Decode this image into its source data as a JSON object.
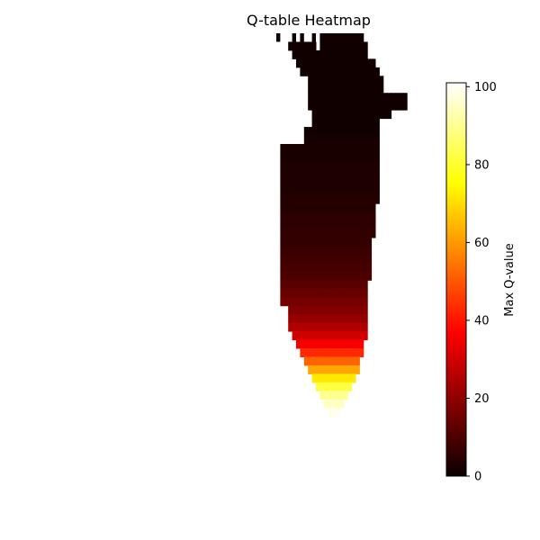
{
  "chart_data": {
    "type": "heatmap",
    "title": "Q-table Heatmap",
    "xlabel": "",
    "ylabel": "",
    "axes_visible": false,
    "grid": false,
    "empty_cell_color": "#ffffff",
    "colormap": "hot",
    "colorbar": {
      "label": "Max Q-value",
      "range": [
        0,
        101
      ],
      "ticks": [
        0,
        20,
        40,
        60,
        80,
        100
      ],
      "placement": "right"
    },
    "grid_size": {
      "rows": 46,
      "cols": 46
    },
    "description_rows": [
      {
        "y": 0,
        "segments": [
          [
            31,
            41,
            1
          ]
        ],
        "sparse": [
          [
            20,
            1
          ],
          [
            24,
            1
          ],
          [
            26,
            1
          ],
          [
            29,
            1
          ]
        ]
      },
      {
        "y": 1,
        "segments": [
          [
            23,
            29,
            1
          ],
          [
            31,
            42,
            1
          ]
        ]
      },
      {
        "y": 2,
        "segments": [
          [
            24,
            42,
            1
          ]
        ]
      },
      {
        "y": 3,
        "segments": [
          [
            25,
            44,
            1
          ]
        ]
      },
      {
        "y": 4,
        "segments": [
          [
            26,
            45,
            1
          ]
        ]
      },
      {
        "y": 5,
        "segments": [
          [
            28,
            46,
            1
          ]
        ]
      },
      {
        "y": 6,
        "segments": [
          [
            28,
            46,
            1
          ]
        ]
      },
      {
        "y": 7,
        "segments": [
          [
            28,
            52,
            1
          ]
        ]
      },
      {
        "y": 8,
        "segments": [
          [
            28,
            52,
            1
          ]
        ]
      },
      {
        "y": 9,
        "segments": [
          [
            29,
            48,
            1
          ]
        ]
      },
      {
        "y": 10,
        "segments": [
          [
            29,
            45,
            1
          ]
        ]
      },
      {
        "y": 11,
        "segments": [
          [
            27,
            45,
            1
          ]
        ]
      },
      {
        "y": 12,
        "segments": [
          [
            27,
            45,
            2
          ]
        ]
      },
      {
        "y": 13,
        "segments": [
          [
            21,
            45,
            2
          ]
        ]
      },
      {
        "y": 14,
        "segments": [
          [
            21,
            45,
            2
          ]
        ]
      },
      {
        "y": 15,
        "segments": [
          [
            21,
            45,
            3
          ]
        ]
      },
      {
        "y": 16,
        "segments": [
          [
            21,
            45,
            3
          ]
        ]
      },
      {
        "y": 17,
        "segments": [
          [
            21,
            45,
            3
          ]
        ]
      },
      {
        "y": 18,
        "segments": [
          [
            21,
            45,
            3
          ]
        ]
      },
      {
        "y": 19,
        "segments": [
          [
            21,
            45,
            4
          ]
        ]
      },
      {
        "y": 20,
        "segments": [
          [
            21,
            44,
            4
          ]
        ]
      },
      {
        "y": 21,
        "segments": [
          [
            21,
            44,
            5
          ]
        ]
      },
      {
        "y": 22,
        "segments": [
          [
            21,
            44,
            5
          ]
        ]
      },
      {
        "y": 23,
        "segments": [
          [
            21,
            44,
            6
          ]
        ]
      },
      {
        "y": 24,
        "segments": [
          [
            21,
            43,
            6
          ]
        ]
      },
      {
        "y": 25,
        "segments": [
          [
            21,
            43,
            7
          ]
        ]
      },
      {
        "y": 26,
        "segments": [
          [
            21,
            43,
            8
          ]
        ]
      },
      {
        "y": 27,
        "segments": [
          [
            21,
            43,
            9
          ]
        ]
      },
      {
        "y": 28,
        "segments": [
          [
            21,
            43,
            10
          ]
        ]
      },
      {
        "y": 29,
        "segments": [
          [
            21,
            42,
            12
          ]
        ]
      },
      {
        "y": 30,
        "segments": [
          [
            21,
            42,
            14
          ]
        ]
      },
      {
        "y": 31,
        "segments": [
          [
            21,
            42,
            16
          ]
        ]
      },
      {
        "y": 32,
        "segments": [
          [
            23,
            42,
            18
          ]
        ]
      },
      {
        "y": 33,
        "segments": [
          [
            23,
            42,
            21
          ]
        ]
      },
      {
        "y": 34,
        "segments": [
          [
            23,
            42,
            25
          ]
        ]
      },
      {
        "y": 35,
        "segments": [
          [
            24,
            42,
            30
          ]
        ]
      },
      {
        "y": 36,
        "segments": [
          [
            25,
            41,
            36
          ]
        ]
      },
      {
        "y": 37,
        "segments": [
          [
            26,
            41,
            43
          ]
        ]
      },
      {
        "y": 38,
        "segments": [
          [
            27,
            40,
            52
          ]
        ]
      },
      {
        "y": 39,
        "segments": [
          [
            28,
            40,
            62
          ]
        ]
      },
      {
        "y": 40,
        "segments": [
          [
            29,
            39,
            72
          ]
        ]
      },
      {
        "y": 41,
        "segments": [
          [
            30,
            38,
            82
          ]
        ]
      },
      {
        "y": 42,
        "segments": [
          [
            31,
            37,
            90
          ]
        ]
      },
      {
        "y": 43,
        "segments": [
          [
            32,
            36,
            95
          ]
        ]
      },
      {
        "y": 44,
        "segments": [
          [
            33,
            35,
            99
          ]
        ]
      },
      {
        "y": 45,
        "segments": [
          [
            34,
            34,
            101
          ]
        ]
      }
    ]
  }
}
